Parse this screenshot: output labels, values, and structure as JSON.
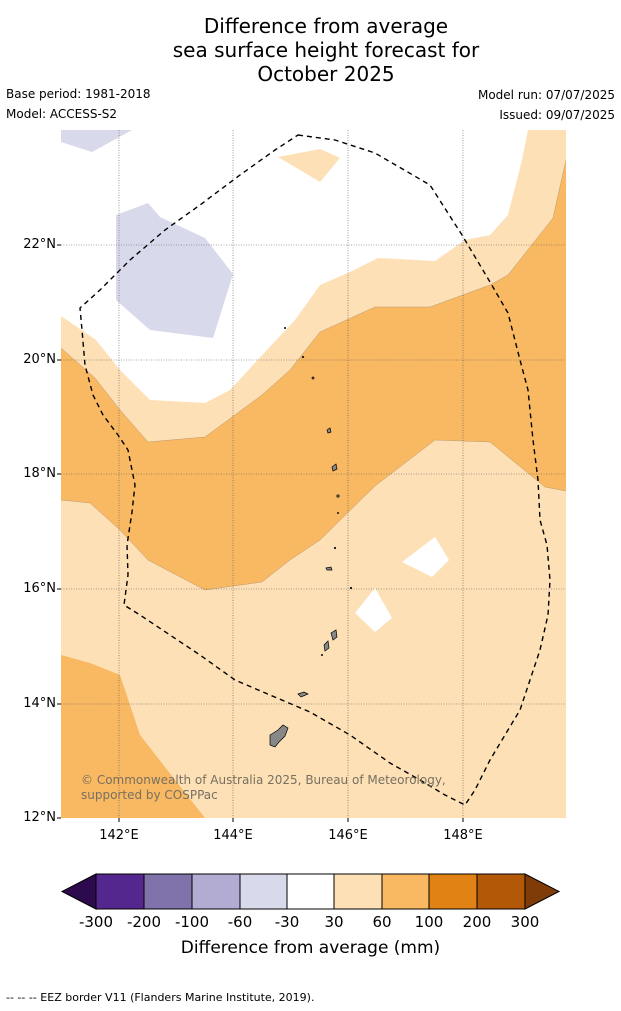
{
  "title_lines": [
    "Difference from average",
    "sea surface height forecast for",
    "October 2025"
  ],
  "base_period": "Base period: 1981-2018",
  "model": "Model: ACCESS-S2",
  "model_run": "Model run: 07/07/2025",
  "issued": "Issued: 09/07/2025",
  "lat_labels": [
    "22°N",
    "20°N",
    "18°N",
    "16°N",
    "14°N",
    "12°N"
  ],
  "lon_labels": [
    "142°E",
    "144°E",
    "146°E",
    "148°E"
  ],
  "credit": "© Commonwealth of Australia 2025, Bureau of Meteorology, supported by COSPPac",
  "colorbar": {
    "title": "Difference from average (mm)",
    "tick_labels": [
      "-300",
      "-200",
      "-100",
      "-60",
      "-30",
      "30",
      "60",
      "100",
      "200",
      "300"
    ],
    "colors": [
      "#2d0a4e",
      "#54278f",
      "#8073ac",
      "#b2abd2",
      "#d8daeb",
      "#ffffff",
      "#fde0b6",
      "#f9b862",
      "#e08214",
      "#b35806",
      "#7f3b08"
    ]
  },
  "footer": "--  --  -- EEZ border V11 (Flanders Marine Institute, 2019).",
  "map_colors": {
    "band_30_60": "#fde0b6",
    "band_60_100": "#f9b862",
    "band_neg": "#d8daeb",
    "land": "#888888"
  }
}
